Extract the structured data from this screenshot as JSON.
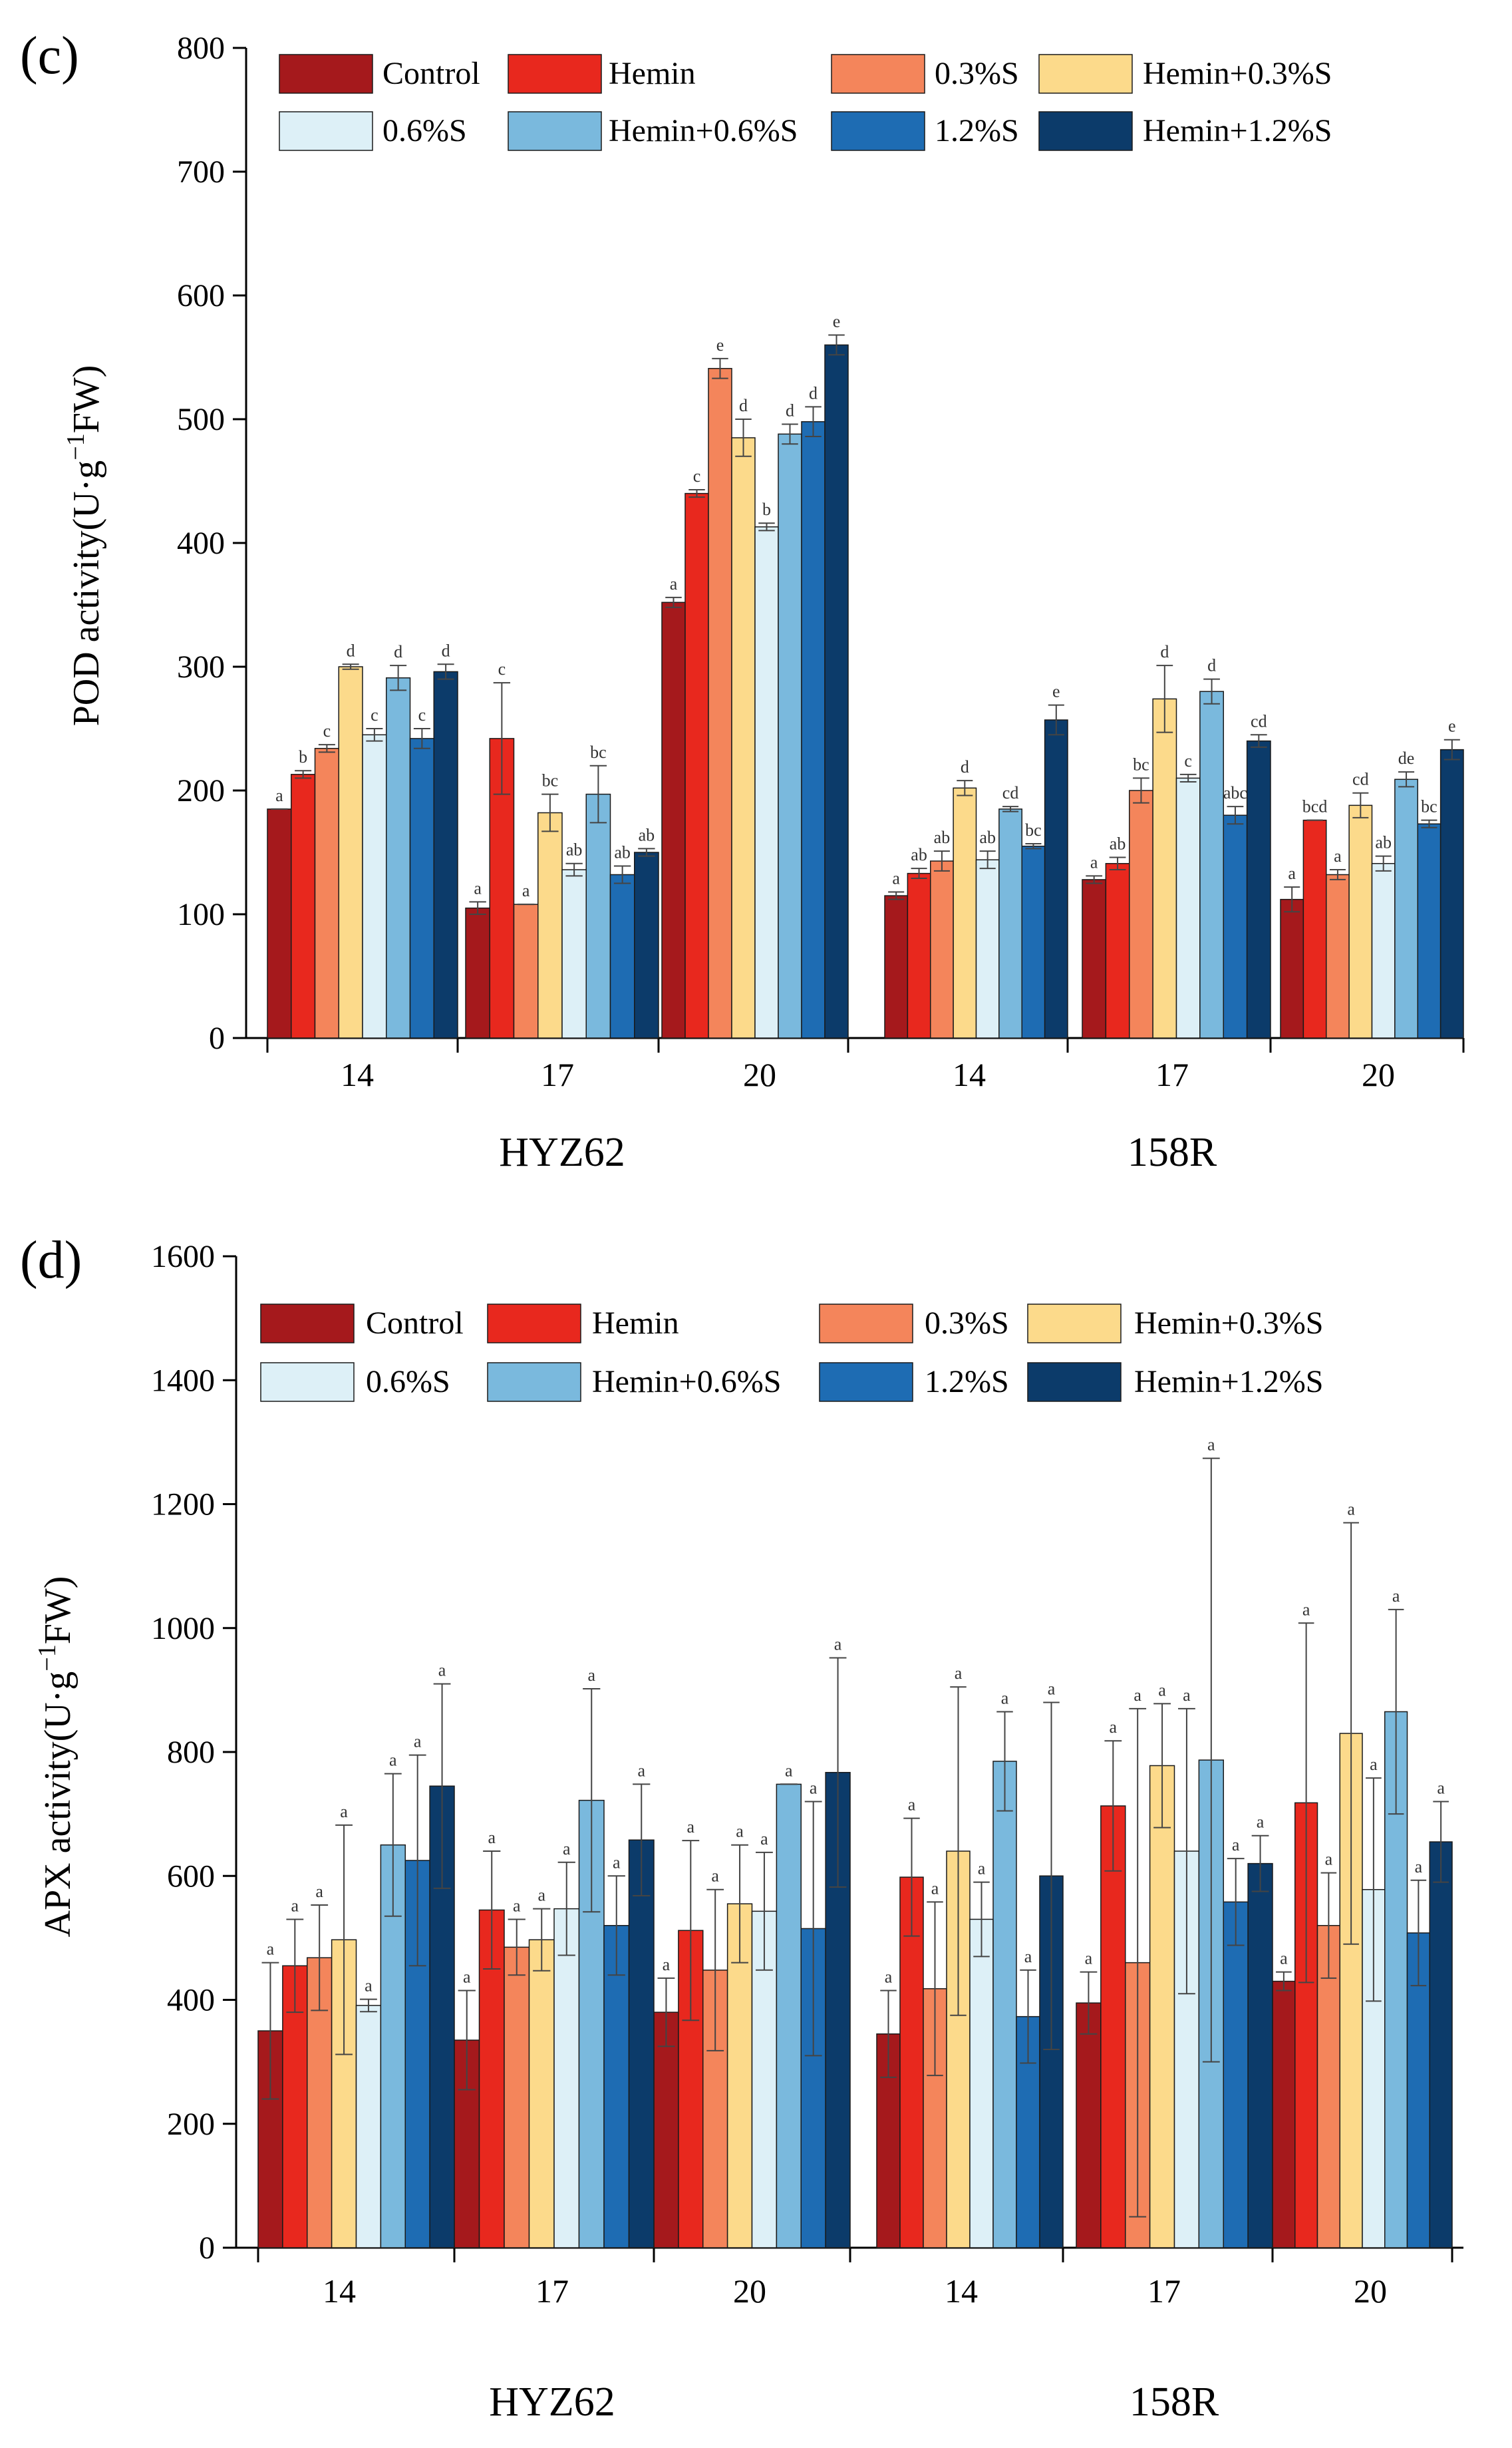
{
  "chart_data": [
    {
      "type": "bar",
      "panel_label": "(c)",
      "ylabel_prefix": "POD activity(U·g",
      "ylabel_sup": "−1",
      "ylabel_suffix": "FW)",
      "ylim": [
        0,
        800
      ],
      "yticks": [
        0,
        100,
        200,
        300,
        400,
        500,
        600,
        700,
        800
      ],
      "groups": [
        {
          "name": "HYZ62",
          "days": [
            "14",
            "17",
            "20"
          ]
        },
        {
          "name": "158R",
          "days": [
            "14",
            "17",
            "20"
          ]
        }
      ],
      "categories": [
        "14",
        "17",
        "20",
        "14",
        "17",
        "20"
      ],
      "series": [
        {
          "name": "Control",
          "color": "#A5191C",
          "values": [
            185,
            105,
            352,
            115,
            128,
            112
          ],
          "errors": [
            0,
            5,
            4,
            3,
            3,
            10
          ],
          "letters": [
            "a",
            "a",
            "a",
            "a",
            "a",
            "a"
          ]
        },
        {
          "name": "Hemin",
          "color": "#E8281E",
          "values": [
            213,
            242,
            440,
            133,
            141,
            176
          ],
          "errors": [
            3,
            45,
            3,
            4,
            5,
            0
          ],
          "letters": [
            "b",
            "c",
            "c",
            "ab",
            "ab",
            "bcd"
          ]
        },
        {
          "name": "0.3%S",
          "color": "#F4855B",
          "values": [
            234,
            108,
            541,
            143,
            200,
            132
          ],
          "errors": [
            3,
            0,
            8,
            8,
            10,
            4
          ],
          "letters": [
            "c",
            "a",
            "e",
            "ab",
            "bc",
            "a"
          ]
        },
        {
          "name": "Hemin+0.3%S",
          "color": "#FCDA8B",
          "values": [
            300,
            182,
            485,
            202,
            274,
            188
          ],
          "errors": [
            2,
            15,
            15,
            6,
            27,
            10
          ],
          "letters": [
            "d",
            "bc",
            "d",
            "d",
            "d",
            "cd"
          ]
        },
        {
          "name": "0.6%S",
          "color": "#DDF0F7",
          "values": [
            245,
            136,
            413,
            144,
            210,
            141
          ],
          "errors": [
            5,
            5,
            3,
            7,
            3,
            6
          ],
          "letters": [
            "c",
            "ab",
            "b",
            "ab",
            "c",
            "ab"
          ]
        },
        {
          "name": "Hemin+0.6%S",
          "color": "#7AB9DD",
          "values": [
            291,
            197,
            488,
            185,
            280,
            209
          ],
          "errors": [
            10,
            23,
            8,
            2,
            10,
            6
          ],
          "letters": [
            "d",
            "bc",
            "d",
            "cd",
            "d",
            "de"
          ]
        },
        {
          "name": "1.2%S",
          "color": "#1E6CB3",
          "values": [
            242,
            132,
            498,
            155,
            180,
            173
          ],
          "errors": [
            8,
            7,
            12,
            2,
            7,
            3
          ],
          "letters": [
            "c",
            "ab",
            "d",
            "bc",
            "abc",
            "bc"
          ]
        },
        {
          "name": "Hemin+1.2%S",
          "color": "#0C3B6A",
          "values": [
            296,
            150,
            560,
            257,
            240,
            233
          ],
          "errors": [
            6,
            3,
            8,
            12,
            5,
            8
          ],
          "letters": [
            "d",
            "ab",
            "e",
            "e",
            "cd",
            "e"
          ]
        }
      ]
    },
    {
      "type": "bar",
      "panel_label": "(d)",
      "ylabel_prefix": "APX activity(U·g",
      "ylabel_sup": "−1",
      "ylabel_suffix": "FW)",
      "ylim": [
        0,
        1600
      ],
      "yticks": [
        0,
        200,
        400,
        600,
        800,
        1000,
        1200,
        1400,
        1600
      ],
      "groups": [
        {
          "name": "HYZ62",
          "days": [
            "14",
            "17",
            "20"
          ]
        },
        {
          "name": "158R",
          "days": [
            "14",
            "17",
            "20"
          ]
        }
      ],
      "categories": [
        "14",
        "17",
        "20",
        "14",
        "17",
        "20"
      ],
      "series": [
        {
          "name": "Control",
          "color": "#A5191C",
          "values": [
            350,
            335,
            380,
            345,
            395,
            430
          ],
          "errors": [
            110,
            80,
            55,
            70,
            50,
            15
          ],
          "letters": [
            "a",
            "a",
            "a",
            "a",
            "a",
            "a"
          ]
        },
        {
          "name": "Hemin",
          "color": "#E8281E",
          "values": [
            455,
            545,
            512,
            598,
            713,
            718
          ],
          "errors": [
            75,
            95,
            145,
            95,
            105,
            290
          ],
          "letters": [
            "a",
            "a",
            "a",
            "a",
            "a",
            "a"
          ]
        },
        {
          "name": "0.3%S",
          "color": "#F4855B",
          "values": [
            468,
            485,
            448,
            418,
            460,
            520
          ],
          "errors": [
            85,
            45,
            130,
            140,
            410,
            85
          ],
          "letters": [
            "a",
            "a",
            "a",
            "a",
            "a",
            "a"
          ]
        },
        {
          "name": "Hemin+0.3%S",
          "color": "#FCDA8B",
          "values": [
            497,
            497,
            555,
            640,
            778,
            830
          ],
          "errors": [
            185,
            50,
            95,
            265,
            100,
            340
          ],
          "letters": [
            "a",
            "a",
            "a",
            "a",
            "a",
            "a"
          ]
        },
        {
          "name": "0.6%S",
          "color": "#DDF0F7",
          "values": [
            391,
            547,
            543,
            530,
            640,
            578
          ],
          "errors": [
            10,
            75,
            95,
            60,
            230,
            180
          ],
          "letters": [
            "a",
            "a",
            "a",
            "a",
            "a",
            "a"
          ]
        },
        {
          "name": "Hemin+0.6%S",
          "color": "#7AB9DD",
          "values": [
            650,
            722,
            748,
            785,
            787,
            865
          ],
          "errors": [
            115,
            180,
            0,
            80,
            487,
            165
          ],
          "letters": [
            "a",
            "a",
            "a",
            "a",
            "a",
            "a"
          ]
        },
        {
          "name": "1.2%S",
          "color": "#1E6CB3",
          "values": [
            625,
            520,
            515,
            373,
            558,
            508
          ],
          "errors": [
            170,
            80,
            205,
            75,
            70,
            85
          ],
          "letters": [
            "a",
            "a",
            "a",
            "a",
            "a",
            "a"
          ]
        },
        {
          "name": "Hemin+1.2%S",
          "color": "#0C3B6A",
          "values": [
            745,
            658,
            767,
            600,
            620,
            655
          ],
          "errors": [
            165,
            90,
            185,
            280,
            45,
            65
          ],
          "letters": [
            "a",
            "a",
            "a",
            "a",
            "a",
            "a"
          ]
        }
      ]
    }
  ]
}
